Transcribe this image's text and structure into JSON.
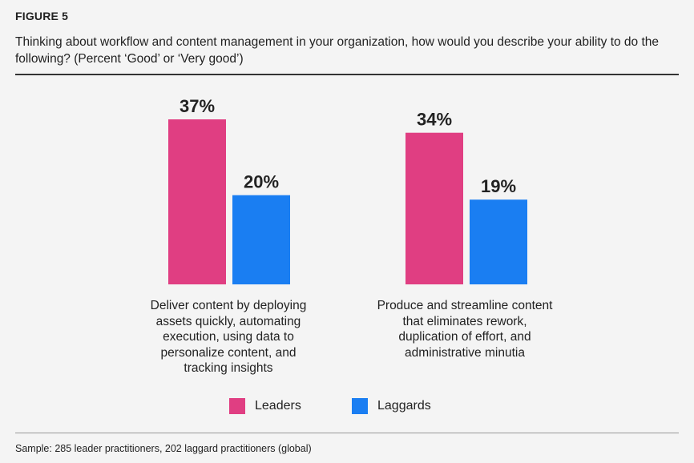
{
  "figure_label": "FIGURE 5",
  "chart_data": {
    "type": "bar",
    "title": "Thinking about workflow and content management in your organization, how would you describe your ability to do the following? (Percent ‘Good’ or ‘Very good’)",
    "categories": [
      "Deliver content by deploying assets quickly, automating execution, using data to personalize content, and tracking insights",
      "Produce and streamline content that eliminates rework, duplication of effort, and administrative minutia"
    ],
    "series": [
      {
        "name": "Leaders",
        "values": [
          37,
          34
        ],
        "labels": [
          "37%",
          "34%"
        ],
        "color": "#e03e82"
      },
      {
        "name": "Laggards",
        "values": [
          20,
          19
        ],
        "labels": [
          "20%",
          "19%"
        ],
        "color": "#1a7ef2"
      }
    ],
    "ylim": [
      0,
      37
    ],
    "grid": false,
    "legend_position": "bottom-center"
  },
  "legend": [
    {
      "label": "Leaders",
      "color": "#e03e82"
    },
    {
      "label": "Laggards",
      "color": "#1a7ef2"
    }
  ],
  "note": "Sample: 285 leader practitioners, 202 laggard practitioners (global)"
}
